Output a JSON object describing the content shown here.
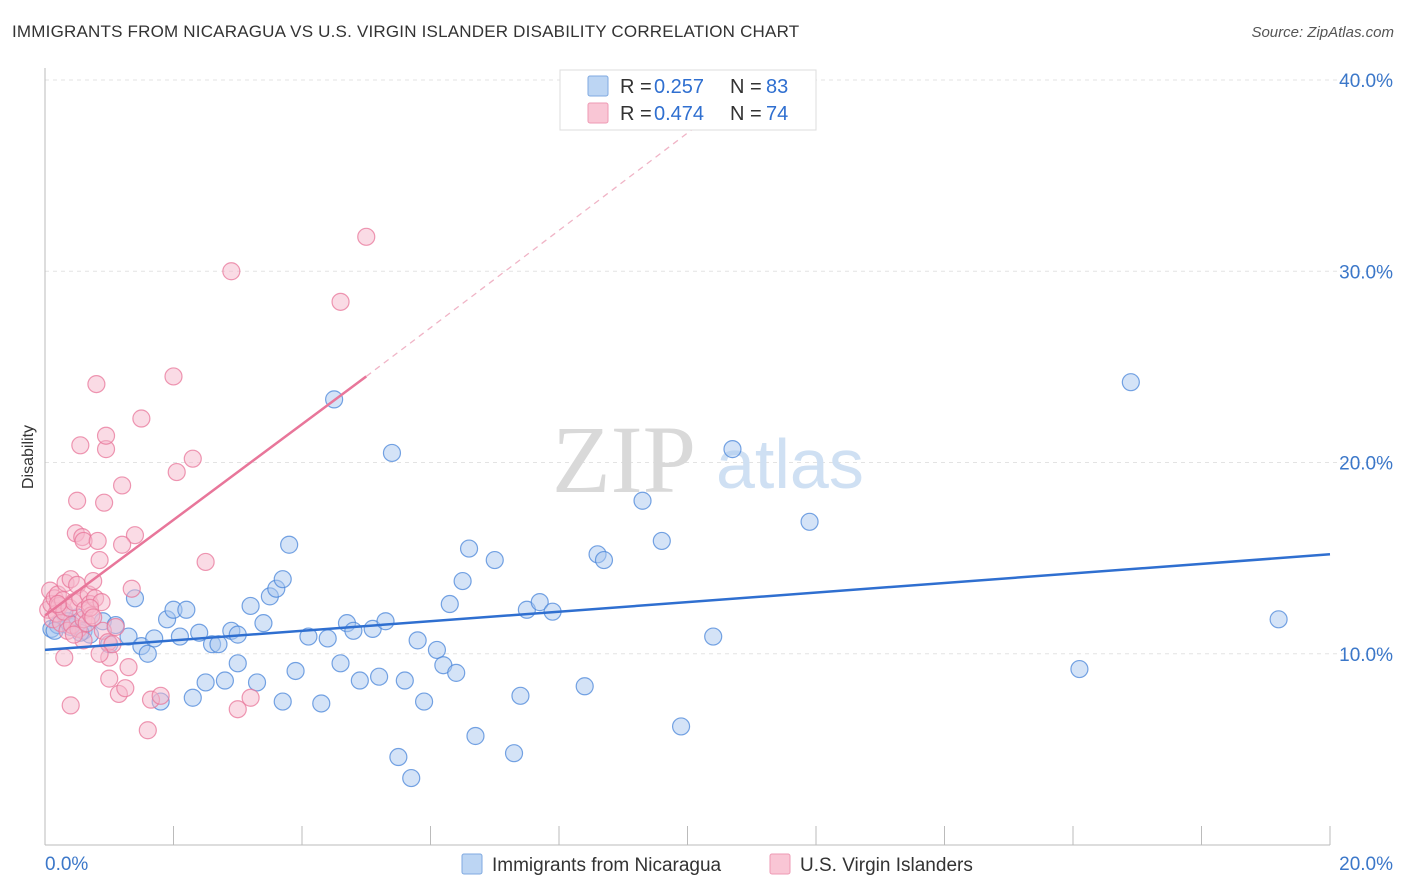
{
  "header": {
    "title": "IMMIGRANTS FROM NICARAGUA VS U.S. VIRGIN ISLANDER DISABILITY CORRELATION CHART",
    "source": "Source: ZipAtlas.com"
  },
  "watermark": {
    "zip": "ZIP",
    "atlas": "atlas"
  },
  "legend": {
    "rows": [
      {
        "r_label": "R = ",
        "r_value": "0.257",
        "n_label": "N = ",
        "n_value": "83",
        "color": "#8fb7e8"
      },
      {
        "r_label": "R = ",
        "r_value": "0.474",
        "n_label": "N = ",
        "n_value": "74",
        "color": "#f4a9c0"
      }
    ]
  },
  "chart_data": {
    "type": "scatter",
    "title": "IMMIGRANTS FROM NICARAGUA VS U.S. VIRGIN ISLANDER DISABILITY CORRELATION CHART",
    "xlabel": "",
    "ylabel": "Disability",
    "xlim": [
      0,
      20
    ],
    "ylim": [
      0,
      40
    ],
    "x_tick_labels": [
      "0.0%",
      "20.0%"
    ],
    "y_tick_labels": [
      "10.0%",
      "20.0%",
      "30.0%",
      "40.0%"
    ],
    "y_ticks": [
      10,
      20,
      30,
      40
    ],
    "grid": "horizontal dashed",
    "legend_position": "top-center",
    "series": [
      {
        "name": "Immigrants from Nicaragua",
        "color": "#4a86d9",
        "fill": "#a9c8ef",
        "trend": {
          "x": [
            0,
            20
          ],
          "y": [
            10.2,
            15.2
          ]
        },
        "points": [
          [
            0.1,
            11.3
          ],
          [
            0.2,
            11.5
          ],
          [
            0.3,
            12.1
          ],
          [
            0.4,
            11.4
          ],
          [
            0.5,
            11.9
          ],
          [
            0.6,
            11.2
          ],
          [
            0.7,
            11.0
          ],
          [
            0.9,
            11.7
          ],
          [
            1.0,
            10.5
          ],
          [
            1.1,
            11.5
          ],
          [
            1.3,
            10.9
          ],
          [
            1.4,
            12.9
          ],
          [
            1.5,
            10.4
          ],
          [
            1.6,
            10.0
          ],
          [
            1.7,
            10.8
          ],
          [
            1.8,
            7.5
          ],
          [
            1.9,
            11.8
          ],
          [
            2.0,
            12.3
          ],
          [
            2.1,
            10.9
          ],
          [
            2.2,
            12.3
          ],
          [
            2.3,
            7.7
          ],
          [
            2.4,
            11.1
          ],
          [
            2.5,
            8.5
          ],
          [
            2.6,
            10.5
          ],
          [
            2.7,
            10.5
          ],
          [
            2.8,
            8.6
          ],
          [
            2.9,
            11.2
          ],
          [
            3.0,
            11.0
          ],
          [
            3.0,
            9.5
          ],
          [
            3.2,
            12.5
          ],
          [
            3.3,
            8.5
          ],
          [
            3.4,
            11.6
          ],
          [
            3.5,
            13.0
          ],
          [
            3.6,
            13.4
          ],
          [
            3.7,
            13.9
          ],
          [
            3.7,
            7.5
          ],
          [
            3.8,
            15.7
          ],
          [
            3.9,
            9.1
          ],
          [
            4.1,
            10.9
          ],
          [
            4.3,
            7.4
          ],
          [
            4.4,
            10.8
          ],
          [
            4.5,
            23.3
          ],
          [
            4.6,
            9.5
          ],
          [
            4.7,
            11.6
          ],
          [
            4.8,
            11.2
          ],
          [
            4.9,
            8.6
          ],
          [
            5.1,
            11.3
          ],
          [
            5.2,
            8.8
          ],
          [
            5.3,
            11.7
          ],
          [
            5.4,
            20.5
          ],
          [
            5.5,
            4.6
          ],
          [
            5.6,
            8.6
          ],
          [
            5.7,
            3.5
          ],
          [
            5.8,
            10.7
          ],
          [
            5.9,
            7.5
          ],
          [
            6.1,
            10.2
          ],
          [
            6.2,
            9.4
          ],
          [
            6.3,
            12.6
          ],
          [
            6.4,
            9.0
          ],
          [
            6.5,
            13.8
          ],
          [
            6.6,
            15.5
          ],
          [
            6.7,
            5.7
          ],
          [
            7.0,
            14.9
          ],
          [
            7.3,
            4.8
          ],
          [
            7.4,
            7.8
          ],
          [
            7.5,
            12.3
          ],
          [
            7.7,
            12.7
          ],
          [
            7.9,
            12.2
          ],
          [
            8.4,
            8.3
          ],
          [
            8.6,
            15.2
          ],
          [
            8.7,
            14.9
          ],
          [
            9.3,
            18.0
          ],
          [
            9.6,
            15.9
          ],
          [
            9.9,
            6.2
          ],
          [
            10.4,
            10.9
          ],
          [
            10.7,
            20.7
          ],
          [
            11.9,
            16.9
          ],
          [
            16.1,
            9.2
          ],
          [
            16.9,
            24.2
          ],
          [
            19.2,
            11.8
          ],
          [
            0.15,
            11.2
          ],
          [
            0.35,
            11.7
          ],
          [
            0.55,
            11.1
          ]
        ]
      },
      {
        "name": "U.S. Virgin Islanders",
        "color": "#e8769a",
        "fill": "#f6b8cb",
        "trend": {
          "x": [
            0,
            5
          ],
          "y": [
            12.0,
            24.5
          ]
        },
        "trend_extension": {
          "x": [
            5,
            10.5
          ],
          "y": [
            24.5,
            38.5
          ]
        },
        "points": [
          [
            0.05,
            12.3
          ],
          [
            0.08,
            13.3
          ],
          [
            0.1,
            12.6
          ],
          [
            0.12,
            11.8
          ],
          [
            0.15,
            12.9
          ],
          [
            0.18,
            12.1
          ],
          [
            0.2,
            13.1
          ],
          [
            0.22,
            12.5
          ],
          [
            0.25,
            11.6
          ],
          [
            0.28,
            12.8
          ],
          [
            0.3,
            12.2
          ],
          [
            0.32,
            13.7
          ],
          [
            0.35,
            11.2
          ],
          [
            0.38,
            12.4
          ],
          [
            0.4,
            13.9
          ],
          [
            0.42,
            11.5
          ],
          [
            0.45,
            12.7
          ],
          [
            0.48,
            16.3
          ],
          [
            0.5,
            13.6
          ],
          [
            0.5,
            18.0
          ],
          [
            0.52,
            11.3
          ],
          [
            0.55,
            20.9
          ],
          [
            0.55,
            12.9
          ],
          [
            0.58,
            16.1
          ],
          [
            0.6,
            15.9
          ],
          [
            0.6,
            11.8
          ],
          [
            0.62,
            12.3
          ],
          [
            0.65,
            11.6
          ],
          [
            0.68,
            13.1
          ],
          [
            0.7,
            12.6
          ],
          [
            0.72,
            12.0
          ],
          [
            0.75,
            13.8
          ],
          [
            0.78,
            12.9
          ],
          [
            0.8,
            24.1
          ],
          [
            0.82,
            15.9
          ],
          [
            0.85,
            14.9
          ],
          [
            0.88,
            12.7
          ],
          [
            0.9,
            11.2
          ],
          [
            0.92,
            17.9
          ],
          [
            0.95,
            20.7
          ],
          [
            0.95,
            21.4
          ],
          [
            0.98,
            10.6
          ],
          [
            1.0,
            9.8
          ],
          [
            1.0,
            8.7
          ],
          [
            1.05,
            10.5
          ],
          [
            1.1,
            11.4
          ],
          [
            1.15,
            7.9
          ],
          [
            1.2,
            18.8
          ],
          [
            1.25,
            8.2
          ],
          [
            1.3,
            9.3
          ],
          [
            1.35,
            13.4
          ],
          [
            1.4,
            16.2
          ],
          [
            1.5,
            22.3
          ],
          [
            1.6,
            6.0
          ],
          [
            1.65,
            7.6
          ],
          [
            1.8,
            7.8
          ],
          [
            2.0,
            24.5
          ],
          [
            2.05,
            19.5
          ],
          [
            2.3,
            20.2
          ],
          [
            2.5,
            14.8
          ],
          [
            2.9,
            30.0
          ],
          [
            3.0,
            7.1
          ],
          [
            3.2,
            7.7
          ],
          [
            4.6,
            28.4
          ],
          [
            5.0,
            31.8
          ],
          [
            0.3,
            9.8
          ],
          [
            0.4,
            7.3
          ],
          [
            0.6,
            10.7
          ],
          [
            0.7,
            12.4
          ],
          [
            0.75,
            11.9
          ],
          [
            0.85,
            10.0
          ],
          [
            1.2,
            15.7
          ],
          [
            0.2,
            12.6
          ],
          [
            0.45,
            11.0
          ]
        ]
      }
    ]
  },
  "bottom_legend": [
    {
      "label": "Immigrants from Nicaragua"
    },
    {
      "label": "U.S. Virgin Islanders"
    }
  ]
}
